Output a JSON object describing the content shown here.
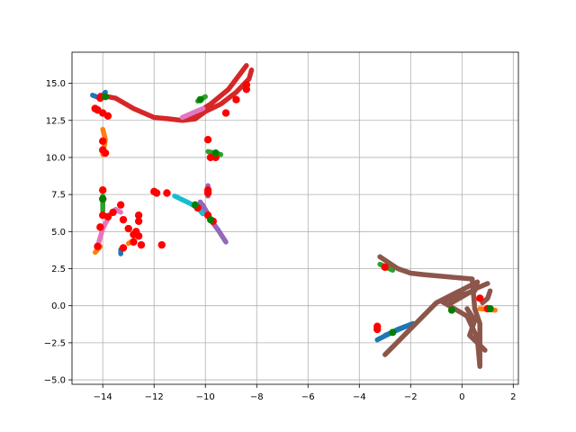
{
  "chart_data": {
    "type": "scatter",
    "title": "",
    "xlabel": "",
    "ylabel": "",
    "xlim": [
      -15.2,
      2.2
    ],
    "ylim": [
      -5.3,
      17.1
    ],
    "grid": true,
    "xticks": [
      -14,
      -12,
      -10,
      -8,
      -6,
      -4,
      -2,
      0,
      2
    ],
    "yticks": [
      -5.0,
      -2.5,
      0.0,
      2.5,
      5.0,
      7.5,
      10.0,
      12.5,
      15.0
    ],
    "xtick_labels": [
      "−14",
      "−12",
      "−10",
      "−8",
      "−6",
      "−4",
      "−2",
      "0",
      "2"
    ],
    "ytick_labels": [
      "−5.0",
      "−2.5",
      "0.0",
      "2.5",
      "5.0",
      "7.5",
      "10.0",
      "12.5",
      "15.0"
    ],
    "colors": {
      "blue": "#1f77b4",
      "orange": "#ff7f0e",
      "green": "#2ca02c",
      "red": "#d62728",
      "purple": "#9467bd",
      "brown": "#8c564b",
      "pink": "#e377c2",
      "cyan": "#17becf",
      "marker_red": "#ff0000",
      "marker_green": "#008000"
    },
    "series": [
      {
        "color": "blue",
        "kind": "path",
        "points": [
          [
            -14.4,
            14.2
          ],
          [
            -14.1,
            14.0
          ],
          [
            -13.9,
            14.4
          ]
        ]
      },
      {
        "color": "blue",
        "kind": "path",
        "points": [
          [
            -13.3,
            3.5
          ],
          [
            -13.3,
            3.8
          ]
        ]
      },
      {
        "color": "blue",
        "kind": "path",
        "points": [
          [
            -3.3,
            -2.3
          ],
          [
            -2.5,
            -1.6
          ],
          [
            -1.9,
            -1.2
          ]
        ]
      },
      {
        "color": "blue",
        "kind": "path",
        "points": [
          [
            -3.0,
            -2.0
          ],
          [
            -2.2,
            -1.4
          ]
        ]
      },
      {
        "color": "orange",
        "kind": "path",
        "points": [
          [
            -14.0,
            11.9
          ],
          [
            -13.9,
            11.2
          ],
          [
            -14.0,
            10.2
          ]
        ]
      },
      {
        "color": "orange",
        "kind": "path",
        "points": [
          [
            -14.3,
            3.6
          ],
          [
            -14.1,
            4.0
          ]
        ]
      },
      {
        "color": "orange",
        "kind": "path",
        "points": [
          [
            0.7,
            -0.2
          ],
          [
            1.3,
            -0.3
          ]
        ]
      },
      {
        "color": "orange",
        "kind": "path",
        "points": [
          [
            -13.0,
            4.2
          ],
          [
            -12.8,
            4.4
          ]
        ]
      },
      {
        "color": "green",
        "kind": "path",
        "points": [
          [
            -9.9,
            10.4
          ],
          [
            -9.4,
            10.2
          ]
        ]
      },
      {
        "color": "green",
        "kind": "path",
        "points": [
          [
            -14.0,
            7.4
          ],
          [
            -14.0,
            6.4
          ]
        ]
      },
      {
        "color": "green",
        "kind": "path",
        "points": [
          [
            -3.2,
            2.8
          ],
          [
            -2.7,
            2.4
          ]
        ]
      },
      {
        "color": "green",
        "kind": "path",
        "points": [
          [
            -10.3,
            13.8
          ],
          [
            -10.0,
            14.1
          ]
        ]
      },
      {
        "color": "red",
        "kind": "path",
        "points": [
          [
            -14.1,
            14.2
          ],
          [
            -13.5,
            14.0
          ],
          [
            -12.8,
            13.3
          ],
          [
            -12.0,
            12.7
          ],
          [
            -11.4,
            12.6
          ],
          [
            -10.9,
            12.5
          ],
          [
            -10.4,
            12.6
          ],
          [
            -10.0,
            13.1
          ],
          [
            -9.4,
            13.6
          ],
          [
            -8.8,
            14.4
          ],
          [
            -8.3,
            15.3
          ],
          [
            -8.2,
            15.9
          ]
        ]
      },
      {
        "color": "red",
        "kind": "path",
        "points": [
          [
            -10.7,
            12.6
          ],
          [
            -9.8,
            13.6
          ],
          [
            -9.1,
            14.6
          ],
          [
            -8.4,
            16.2
          ]
        ]
      },
      {
        "color": "purple",
        "kind": "path",
        "points": [
          [
            -9.9,
            8.1
          ],
          [
            -9.9,
            7.4
          ]
        ]
      },
      {
        "color": "purple",
        "kind": "path",
        "points": [
          [
            -10.1,
            6.8
          ],
          [
            -9.8,
            5.8
          ],
          [
            -9.5,
            5.1
          ],
          [
            -9.2,
            4.3
          ]
        ]
      },
      {
        "color": "purple",
        "kind": "path",
        "points": [
          [
            -10.2,
            7.0
          ],
          [
            -9.9,
            6.2
          ]
        ]
      },
      {
        "color": "brown",
        "kind": "path",
        "points": [
          [
            -3.2,
            3.3
          ],
          [
            -2.5,
            2.5
          ],
          [
            -2.0,
            2.2
          ],
          [
            -1.5,
            2.1
          ],
          [
            0.4,
            1.8
          ],
          [
            0.5,
            -0.2
          ],
          [
            0.7,
            -1.2
          ],
          [
            0.7,
            -2.6
          ],
          [
            0.7,
            -4.1
          ],
          [
            0.6,
            -2.2
          ],
          [
            0.2,
            -0.7
          ],
          [
            -0.8,
            0.3
          ],
          [
            0.5,
            1.0
          ],
          [
            0.6,
            1.6
          ],
          [
            -1.0,
            0.2
          ],
          [
            -3.0,
            -3.3
          ]
        ]
      },
      {
        "color": "brown",
        "kind": "path",
        "points": [
          [
            -0.5,
            0.1
          ],
          [
            0.1,
            0.7
          ],
          [
            0.6,
            1.2
          ],
          [
            1.0,
            1.5
          ]
        ]
      },
      {
        "color": "brown",
        "kind": "path",
        "points": [
          [
            0.8,
            0.2
          ],
          [
            1.0,
            0.5
          ],
          [
            1.1,
            1.0
          ]
        ]
      },
      {
        "color": "brown",
        "kind": "path",
        "points": [
          [
            0.2,
            -0.2
          ],
          [
            0.5,
            -1.0
          ],
          [
            0.3,
            -2.0
          ],
          [
            0.9,
            -3.0
          ]
        ]
      },
      {
        "color": "pink",
        "kind": "path",
        "points": [
          [
            -14.2,
            4.0
          ],
          [
            -14.0,
            5.2
          ],
          [
            -13.7,
            6.2
          ],
          [
            -13.5,
            6.5
          ],
          [
            -13.3,
            6.3
          ]
        ]
      },
      {
        "color": "pink",
        "kind": "path",
        "points": [
          [
            -10.9,
            12.7
          ],
          [
            -10.5,
            13.0
          ],
          [
            -10.1,
            13.3
          ]
        ]
      },
      {
        "color": "cyan",
        "kind": "path",
        "points": [
          [
            -11.2,
            7.4
          ],
          [
            -10.6,
            6.9
          ],
          [
            -10.3,
            6.6
          ],
          [
            -10.1,
            6.2
          ]
        ]
      }
    ],
    "markers_red": [
      [
        -14.1,
        14.0
      ],
      [
        -14.3,
        13.3
      ],
      [
        -14.2,
        13.2
      ],
      [
        -14.0,
        13.0
      ],
      [
        -13.8,
        12.8
      ],
      [
        -14.0,
        11.1
      ],
      [
        -14.0,
        10.5
      ],
      [
        -13.9,
        10.3
      ],
      [
        -14.0,
        7.8
      ],
      [
        -14.0,
        7.2
      ],
      [
        -14.0,
        6.1
      ],
      [
        -13.8,
        6.0
      ],
      [
        -13.6,
        6.3
      ],
      [
        -14.1,
        5.3
      ],
      [
        -14.2,
        4.0
      ],
      [
        -13.2,
        3.9
      ],
      [
        -13.3,
        6.8
      ],
      [
        -13.2,
        5.8
      ],
      [
        -13.0,
        5.2
      ],
      [
        -12.8,
        4.8
      ],
      [
        -12.6,
        6.1
      ],
      [
        -12.6,
        5.7
      ],
      [
        -12.7,
        5.0
      ],
      [
        -12.6,
        4.7
      ],
      [
        -12.8,
        4.3
      ],
      [
        -12.5,
        4.1
      ],
      [
        -12.0,
        7.7
      ],
      [
        -11.9,
        7.6
      ],
      [
        -11.5,
        7.6
      ],
      [
        -11.7,
        4.1
      ],
      [
        -9.9,
        11.2
      ],
      [
        -9.8,
        10.0
      ],
      [
        -9.6,
        10.0
      ],
      [
        -9.9,
        7.8
      ],
      [
        -9.9,
        7.6
      ],
      [
        -9.9,
        6.1
      ],
      [
        -9.7,
        5.7
      ],
      [
        -10.3,
        6.6
      ],
      [
        -9.2,
        13.0
      ],
      [
        -8.8,
        13.9
      ],
      [
        -8.4,
        14.6
      ],
      [
        -8.4,
        14.9
      ],
      [
        -3.3,
        -1.4
      ],
      [
        -3.3,
        -1.6
      ],
      [
        -3.0,
        2.6
      ],
      [
        0.7,
        0.5
      ],
      [
        1.0,
        -0.2
      ]
    ],
    "markers_green": [
      [
        -10.2,
        13.9
      ],
      [
        -13.9,
        14.1
      ],
      [
        -14.0,
        7.2
      ],
      [
        -10.4,
        6.8
      ],
      [
        -9.8,
        5.8
      ],
      [
        -9.6,
        10.3
      ],
      [
        -2.7,
        -1.8
      ],
      [
        -0.4,
        -0.3
      ],
      [
        1.1,
        -0.2
      ]
    ]
  }
}
